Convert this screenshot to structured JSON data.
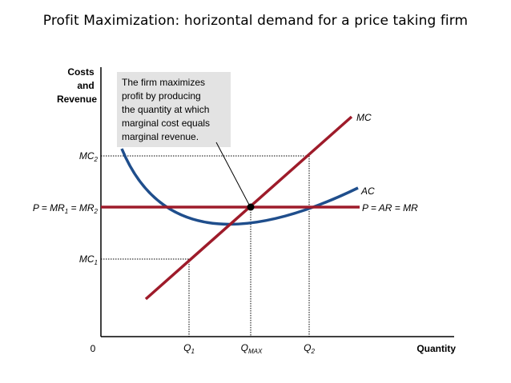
{
  "title": "Profit Maximization: horizontal demand for a price taking firm",
  "axes": {
    "y_label_lines": [
      "Costs",
      "and",
      "Revenue"
    ],
    "x_label": "Quantity",
    "origin_label": "0"
  },
  "y_ticks": {
    "mc2": {
      "main": "MC",
      "sub": "2"
    },
    "mr": {
      "p1": "P = MR",
      "s1": "1",
      "p2": " = MR",
      "s2": "2"
    },
    "mc1": {
      "main": "MC",
      "sub": "1"
    }
  },
  "x_ticks": {
    "q1": {
      "main": "Q",
      "sub": "1"
    },
    "qmax": {
      "main": "Q",
      "sub": "MAX"
    },
    "q2": {
      "main": "Q",
      "sub": "2"
    }
  },
  "curves": {
    "mc": "MC",
    "ac": "AC",
    "demand": "P = AR = MR"
  },
  "callout_lines": [
    "The firm maximizes",
    "profit by producing",
    "the quantity at which",
    "marginal cost equals",
    "marginal revenue."
  ],
  "colors": {
    "mc_line": "#9e1b2a",
    "demand_line": "#9e1b2a",
    "ac_curve": "#1f4e8c",
    "callout_bg": "#e3e3e3",
    "axis": "#000000"
  }
}
